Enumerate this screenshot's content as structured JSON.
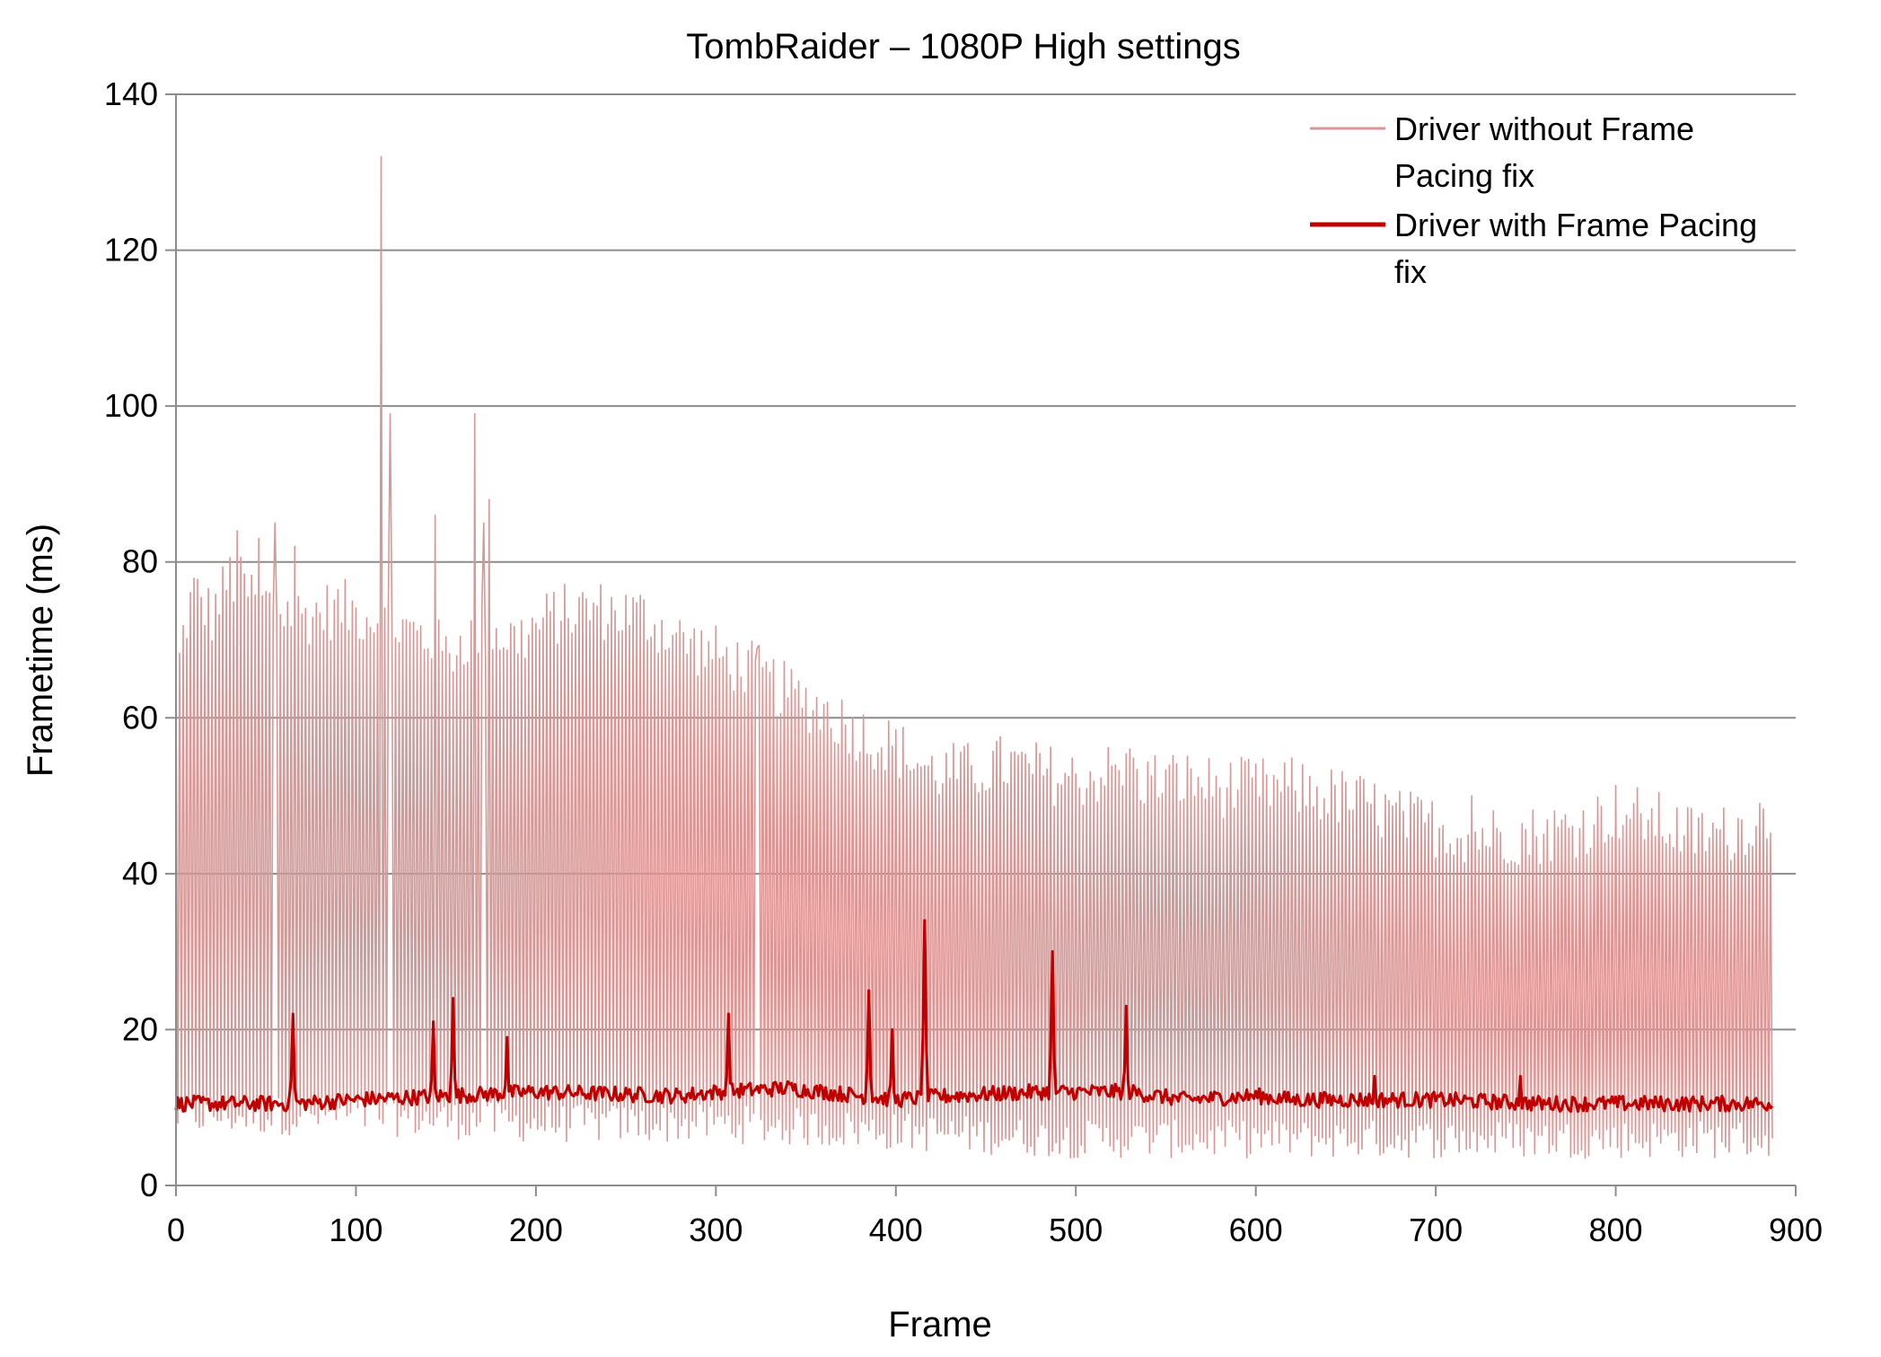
{
  "chart_data": {
    "type": "line",
    "title": "TombRaider – 1080P High settings",
    "xlabel": "Frame",
    "ylabel": "Frametime  (ms)",
    "xlim": [
      0,
      900
    ],
    "ylim": [
      0,
      140
    ],
    "x_ticks": [
      "0",
      "100",
      "200",
      "300",
      "400",
      "500",
      "600",
      "700",
      "800",
      "900"
    ],
    "y_ticks": [
      "0",
      "20",
      "40",
      "60",
      "80",
      "100",
      "120",
      "140"
    ],
    "grid": "horizontal",
    "legend_position": "top-right",
    "frame_count": 888,
    "series": [
      {
        "name": "Driver without Frame Pacing fix",
        "color": "#d99694",
        "pattern": "alternating",
        "high_envelope": [
          [
            0,
            64
          ],
          [
            5,
            72
          ],
          [
            10,
            76
          ],
          [
            20,
            73
          ],
          [
            30,
            78
          ],
          [
            40,
            76
          ],
          [
            55,
            74
          ],
          [
            70,
            73
          ],
          [
            90,
            74
          ],
          [
            110,
            73
          ],
          [
            120,
            72
          ],
          [
            140,
            70
          ],
          [
            150,
            68
          ],
          [
            160,
            70
          ],
          [
            175,
            71
          ],
          [
            190,
            70
          ],
          [
            210,
            73
          ],
          [
            230,
            74
          ],
          [
            260,
            73
          ],
          [
            280,
            70
          ],
          [
            300,
            68
          ],
          [
            320,
            66
          ],
          [
            340,
            63
          ],
          [
            360,
            61
          ],
          [
            380,
            58
          ],
          [
            400,
            56
          ],
          [
            420,
            53
          ],
          [
            440,
            53
          ],
          [
            460,
            54
          ],
          [
            480,
            53
          ],
          [
            500,
            52
          ],
          [
            520,
            53
          ],
          [
            540,
            52
          ],
          [
            560,
            52
          ],
          [
            580,
            51
          ],
          [
            600,
            51
          ],
          [
            620,
            51
          ],
          [
            640,
            50
          ],
          [
            660,
            49
          ],
          [
            680,
            47
          ],
          [
            700,
            46
          ],
          [
            720,
            45
          ],
          [
            740,
            45
          ],
          [
            760,
            45
          ],
          [
            780,
            46
          ],
          [
            800,
            48
          ],
          [
            820,
            47
          ],
          [
            840,
            45
          ],
          [
            860,
            45
          ],
          [
            880,
            47
          ],
          [
            888,
            47
          ]
        ],
        "low_envelope": [
          [
            0,
            8
          ],
          [
            100,
            8
          ],
          [
            200,
            7
          ],
          [
            300,
            7
          ],
          [
            400,
            6
          ],
          [
            500,
            5
          ],
          [
            600,
            5
          ],
          [
            700,
            5
          ],
          [
            800,
            5
          ],
          [
            888,
            5
          ]
        ],
        "spikes": [
          [
            34,
            84
          ],
          [
            46,
            83
          ],
          [
            55,
            85
          ],
          [
            66,
            82
          ],
          [
            114,
            132
          ],
          [
            119,
            99
          ],
          [
            144,
            86
          ],
          [
            166,
            99
          ],
          [
            171,
            85
          ],
          [
            174,
            88
          ],
          [
            323,
            69
          ],
          [
            530,
            56
          ],
          [
            720,
            50
          ],
          [
            810,
            49
          ]
        ]
      },
      {
        "name": "Driver with Frame Pacing fix",
        "color": "#c00000",
        "pattern": "stable",
        "baseline": [
          [
            0,
            10.5
          ],
          [
            64,
            10.5
          ],
          [
            66,
            10.5
          ],
          [
            100,
            11
          ],
          [
            200,
            12
          ],
          [
            280,
            11.5
          ],
          [
            300,
            12
          ],
          [
            340,
            12.5
          ],
          [
            360,
            12
          ],
          [
            400,
            11
          ],
          [
            430,
            11.5
          ],
          [
            480,
            12
          ],
          [
            530,
            12
          ],
          [
            560,
            11
          ],
          [
            600,
            11.5
          ],
          [
            620,
            11
          ],
          [
            700,
            11
          ],
          [
            760,
            10.5
          ],
          [
            888,
            10.5
          ]
        ],
        "spikes": [
          [
            65,
            22
          ],
          [
            143,
            21
          ],
          [
            154,
            24
          ],
          [
            184,
            19
          ],
          [
            307,
            22
          ],
          [
            385,
            25
          ],
          [
            398,
            20
          ],
          [
            416,
            34
          ],
          [
            487,
            30
          ],
          [
            528,
            23
          ],
          [
            666,
            14
          ],
          [
            747,
            14
          ]
        ]
      }
    ]
  }
}
